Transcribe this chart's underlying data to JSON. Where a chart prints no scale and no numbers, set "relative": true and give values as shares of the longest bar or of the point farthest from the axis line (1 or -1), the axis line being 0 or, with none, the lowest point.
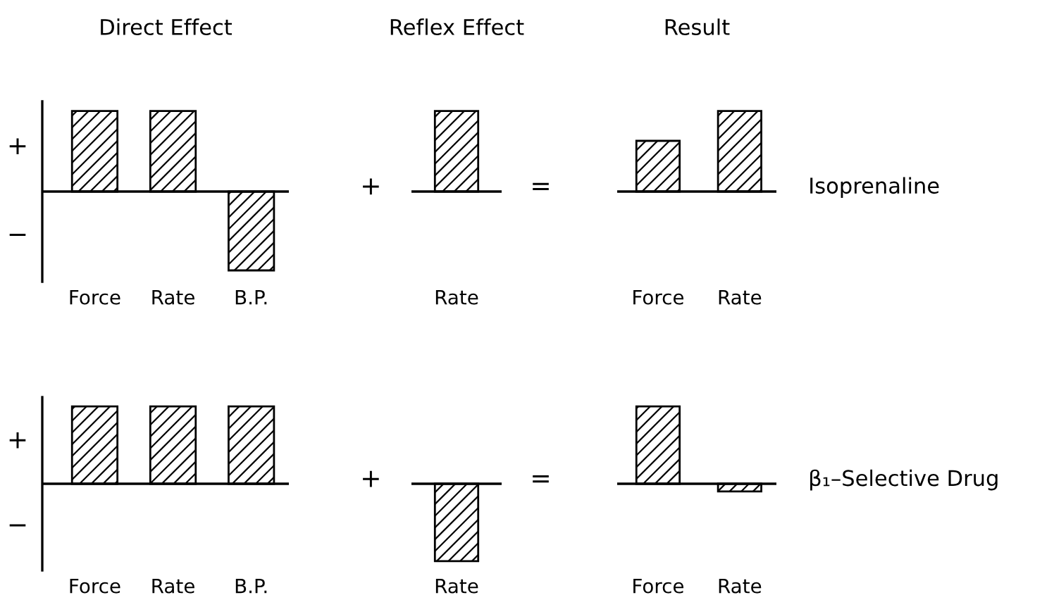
{
  "chart_data": [
    {
      "type": "bar",
      "relative": true,
      "title": "Direct Effect",
      "categories": [
        "Force",
        "Rate",
        "B.P."
      ],
      "values": [
        1,
        1,
        -0.98
      ],
      "color": "#000000",
      "annotations": [
        "+",
        "−"
      ]
    },
    {
      "type": "bar",
      "relative": true,
      "title": "Reflex Effect",
      "categories": [
        "Rate"
      ],
      "values": [
        1
      ],
      "color": "#000000",
      "annotations": [
        "+"
      ]
    },
    {
      "type": "bar",
      "relative": true,
      "title": "Result",
      "categories": [
        "Force",
        "Rate"
      ],
      "values": [
        0.63,
        1
      ],
      "color": "#000000",
      "annotations": [
        "=",
        "Isoprenaline"
      ]
    },
    {
      "type": "bar",
      "relative": true,
      "categories": [
        "Force",
        "Rate",
        "B.P."
      ],
      "values": [
        1,
        1,
        1
      ],
      "color": "#000000",
      "annotations": [
        "+",
        "−"
      ]
    },
    {
      "type": "bar",
      "relative": true,
      "categories": [
        "Rate"
      ],
      "values": [
        -1
      ],
      "color": "#000000",
      "annotations": [
        "+"
      ]
    },
    {
      "type": "bar",
      "relative": true,
      "categories": [
        "Force",
        "Rate"
      ],
      "values": [
        1,
        -0.1
      ],
      "color": "#000000",
      "annotations": [
        "=",
        "β₁–Selective Drug"
      ]
    }
  ]
}
